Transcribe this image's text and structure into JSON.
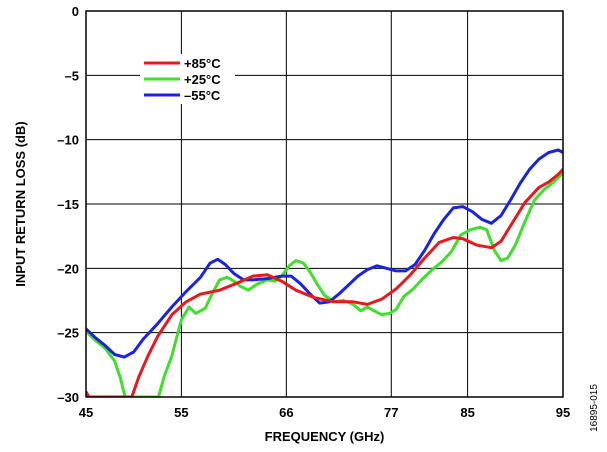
{
  "chart_data": {
    "type": "line",
    "xlabel": "FREQUENCY (GHz)",
    "ylabel": "INPUT RETURN LOSS (dB)",
    "xlim": [
      45,
      95
    ],
    "ylim": [
      -30,
      0
    ],
    "x_ticks": [
      45,
      55,
      66,
      77,
      85,
      95
    ],
    "x_tick_labels": [
      "45",
      "55",
      "66",
      "77",
      "85",
      "95"
    ],
    "y_ticks": [
      0,
      -5,
      -10,
      -15,
      -20,
      -25,
      -30
    ],
    "y_tick_labels": [
      "0",
      "–5",
      "–10",
      "–15",
      "–20",
      "–25",
      "–30"
    ],
    "grid": true,
    "legend_position": "top-left",
    "figure_id": "16895-015",
    "series": [
      {
        "name": "+85°C",
        "color": "#e8191c",
        "points": [
          [
            45.0,
            -29.6
          ],
          [
            45.3,
            -30.0
          ],
          [
            49.8,
            -30.0
          ],
          [
            50.5,
            -28.5
          ],
          [
            51.5,
            -26.8
          ],
          [
            52.5,
            -25.3
          ],
          [
            54.0,
            -23.6
          ],
          [
            55.5,
            -22.6
          ],
          [
            57.0,
            -22.0
          ],
          [
            59.0,
            -21.7
          ],
          [
            61.0,
            -21.1
          ],
          [
            62.5,
            -20.6
          ],
          [
            64.0,
            -20.5
          ],
          [
            65.5,
            -21.0
          ],
          [
            67.0,
            -21.7
          ],
          [
            69.0,
            -22.3
          ],
          [
            71.0,
            -22.6
          ],
          [
            73.0,
            -22.6
          ],
          [
            74.5,
            -22.8
          ],
          [
            76.0,
            -22.4
          ],
          [
            77.5,
            -21.6
          ],
          [
            79.0,
            -20.5
          ],
          [
            80.5,
            -19.2
          ],
          [
            82.0,
            -18.0
          ],
          [
            83.5,
            -17.6
          ],
          [
            84.5,
            -17.7
          ],
          [
            86.0,
            -18.2
          ],
          [
            87.5,
            -18.4
          ],
          [
            88.5,
            -17.9
          ],
          [
            89.5,
            -16.7
          ],
          [
            91.0,
            -14.9
          ],
          [
            92.5,
            -13.7
          ],
          [
            93.5,
            -13.3
          ],
          [
            94.5,
            -12.7
          ],
          [
            95.0,
            -12.3
          ]
        ]
      },
      {
        "name": "+25°C",
        "color": "#3fe02b",
        "points": [
          [
            45.0,
            -24.9
          ],
          [
            46.0,
            -25.6
          ],
          [
            47.0,
            -26.2
          ],
          [
            48.0,
            -27.2
          ],
          [
            48.6,
            -28.5
          ],
          [
            49.1,
            -30.0
          ],
          [
            52.6,
            -30.0
          ],
          [
            53.2,
            -28.4
          ],
          [
            54.0,
            -26.8
          ],
          [
            54.5,
            -25.4
          ],
          [
            55.0,
            -24.0
          ],
          [
            55.8,
            -23.0
          ],
          [
            56.5,
            -23.5
          ],
          [
            57.5,
            -23.1
          ],
          [
            58.2,
            -22.0
          ],
          [
            59.0,
            -20.9
          ],
          [
            59.8,
            -20.7
          ],
          [
            60.5,
            -21.0
          ],
          [
            61.2,
            -21.4
          ],
          [
            62.0,
            -21.7
          ],
          [
            63.0,
            -21.2
          ],
          [
            64.0,
            -20.9
          ],
          [
            64.8,
            -21.0
          ],
          [
            65.5,
            -20.6
          ],
          [
            66.3,
            -19.8
          ],
          [
            67.0,
            -19.4
          ],
          [
            67.8,
            -19.6
          ],
          [
            68.5,
            -20.3
          ],
          [
            69.3,
            -21.3
          ],
          [
            70.0,
            -22.1
          ],
          [
            71.0,
            -22.6
          ],
          [
            72.0,
            -22.5
          ],
          [
            73.0,
            -22.8
          ],
          [
            73.8,
            -23.3
          ],
          [
            74.5,
            -23.0
          ],
          [
            75.2,
            -23.3
          ],
          [
            76.0,
            -23.6
          ],
          [
            76.8,
            -23.5
          ],
          [
            77.5,
            -23.2
          ],
          [
            78.3,
            -22.2
          ],
          [
            79.3,
            -21.6
          ],
          [
            80.3,
            -20.8
          ],
          [
            81.3,
            -20.1
          ],
          [
            82.3,
            -19.5
          ],
          [
            83.3,
            -18.7
          ],
          [
            84.3,
            -17.4
          ],
          [
            85.3,
            -17.0
          ],
          [
            86.3,
            -16.8
          ],
          [
            87.0,
            -17.0
          ],
          [
            87.8,
            -18.6
          ],
          [
            88.5,
            -19.4
          ],
          [
            89.2,
            -19.2
          ],
          [
            90.0,
            -18.2
          ],
          [
            91.0,
            -16.4
          ],
          [
            92.0,
            -14.7
          ],
          [
            93.0,
            -13.9
          ],
          [
            94.0,
            -13.3
          ],
          [
            95.0,
            -12.6
          ]
        ]
      },
      {
        "name": "–55°C",
        "color": "#1a24e0",
        "points": [
          [
            45.0,
            -24.7
          ],
          [
            46.0,
            -25.4
          ],
          [
            47.0,
            -26.0
          ],
          [
            48.0,
            -26.7
          ],
          [
            49.0,
            -26.9
          ],
          [
            50.0,
            -26.5
          ],
          [
            51.0,
            -25.5
          ],
          [
            52.5,
            -24.3
          ],
          [
            54.0,
            -23.0
          ],
          [
            55.5,
            -21.8
          ],
          [
            57.0,
            -20.7
          ],
          [
            58.0,
            -19.6
          ],
          [
            58.8,
            -19.3
          ],
          [
            59.6,
            -19.7
          ],
          [
            60.5,
            -20.4
          ],
          [
            61.5,
            -20.9
          ],
          [
            62.5,
            -20.9
          ],
          [
            64.0,
            -20.8
          ],
          [
            65.5,
            -20.6
          ],
          [
            66.5,
            -20.6
          ],
          [
            67.5,
            -21.2
          ],
          [
            68.5,
            -22.0
          ],
          [
            69.5,
            -22.7
          ],
          [
            70.5,
            -22.6
          ],
          [
            71.5,
            -22.0
          ],
          [
            72.5,
            -21.3
          ],
          [
            73.5,
            -20.6
          ],
          [
            74.5,
            -20.1
          ],
          [
            75.5,
            -19.8
          ],
          [
            76.5,
            -20.0
          ],
          [
            77.5,
            -20.2
          ],
          [
            78.5,
            -20.2
          ],
          [
            79.5,
            -19.7
          ],
          [
            80.5,
            -18.6
          ],
          [
            81.5,
            -17.3
          ],
          [
            82.5,
            -16.2
          ],
          [
            83.5,
            -15.3
          ],
          [
            84.5,
            -15.2
          ],
          [
            85.5,
            -15.6
          ],
          [
            86.5,
            -16.2
          ],
          [
            87.5,
            -16.5
          ],
          [
            88.5,
            -15.9
          ],
          [
            89.5,
            -14.7
          ],
          [
            90.5,
            -13.4
          ],
          [
            91.5,
            -12.3
          ],
          [
            92.5,
            -11.5
          ],
          [
            93.5,
            -11.0
          ],
          [
            94.5,
            -10.8
          ],
          [
            95.0,
            -11.0
          ]
        ]
      }
    ]
  }
}
